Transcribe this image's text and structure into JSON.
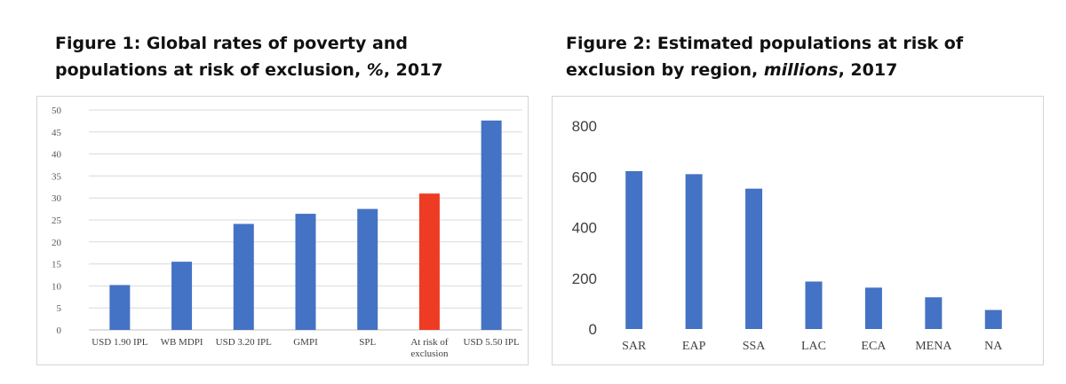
{
  "figures": [
    {
      "title_main": "Figure 1: Global rates of poverty and populations at risk of exclusion, ",
      "title_unit": "%",
      "title_year": ", 2017"
    },
    {
      "title_main": "Figure 2: Estimated populations at risk of exclusion by region, ",
      "title_unit": "millions",
      "title_year": ", 2017"
    }
  ],
  "colors": {
    "bar": "#4472c4",
    "highlight": "#ee3b24",
    "grid": "#d9d9d9"
  },
  "chart_data": [
    {
      "type": "bar",
      "categories": [
        "USD 1.90 IPL",
        "WB MDPI",
        "USD 3.20 IPL",
        "GMPI",
        "SPL",
        "At risk of exclusion",
        "USD 5.50 IPL"
      ],
      "category_lines": [
        [
          "USD 1.90 IPL"
        ],
        [
          "WB MDPI"
        ],
        [
          "USD 3.20 IPL"
        ],
        [
          "GMPI"
        ],
        [
          "SPL"
        ],
        [
          "At risk of",
          "exclusion"
        ],
        [
          "USD 5.50 IPL"
        ]
      ],
      "values": [
        10.2,
        15.5,
        24.1,
        26.4,
        27.5,
        31.0,
        47.6
      ],
      "highlight_index": 5,
      "ylim": [
        0,
        50
      ],
      "yticks": [
        0,
        5,
        10,
        15,
        20,
        25,
        30,
        35,
        40,
        45,
        50
      ],
      "grid": true
    },
    {
      "type": "bar",
      "categories": [
        "SAR",
        "EAP",
        "SSA",
        "LAC",
        "ECA",
        "MENA",
        "NA"
      ],
      "values": [
        622,
        610,
        553,
        187,
        163,
        125,
        75
      ],
      "ylim": [
        0,
        800
      ],
      "yticks": [
        0,
        200,
        400,
        600,
        800
      ],
      "grid": false
    }
  ]
}
